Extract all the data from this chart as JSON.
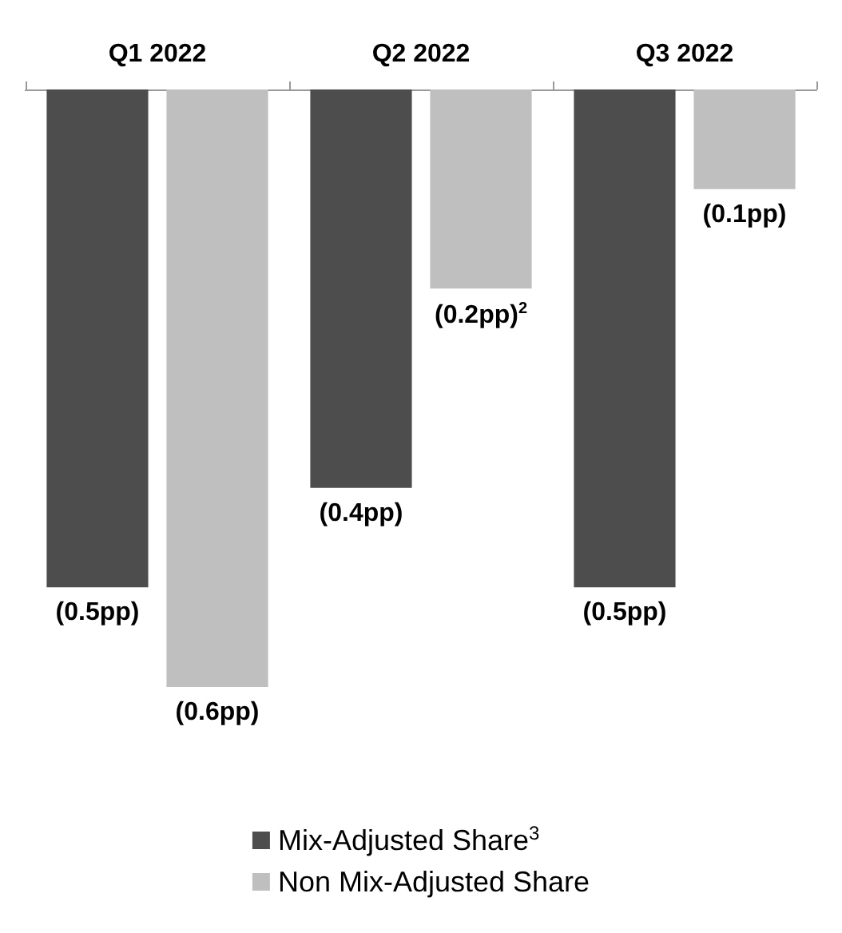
{
  "chart_data": {
    "type": "bar",
    "categories": [
      "Q1 2022",
      "Q2 2022",
      "Q3 2022"
    ],
    "series": [
      {
        "name": "Mix-Adjusted Share$^{3}$",
        "color": "#4d4d4d",
        "values": [
          -0.5,
          -0.4,
          -0.5
        ],
        "value_labels": [
          "(0.5pp)",
          "(0.4pp)",
          "(0.5pp)"
        ]
      },
      {
        "name": "Non Mix-Adjusted Share",
        "color": "#bfbfbf",
        "values": [
          -0.6,
          -0.2,
          -0.1
        ],
        "value_labels": [
          "(0.6pp)",
          "(0.2pp)$^{2}$",
          "(0.1pp)"
        ]
      }
    ],
    "legend": "bottom"
  }
}
